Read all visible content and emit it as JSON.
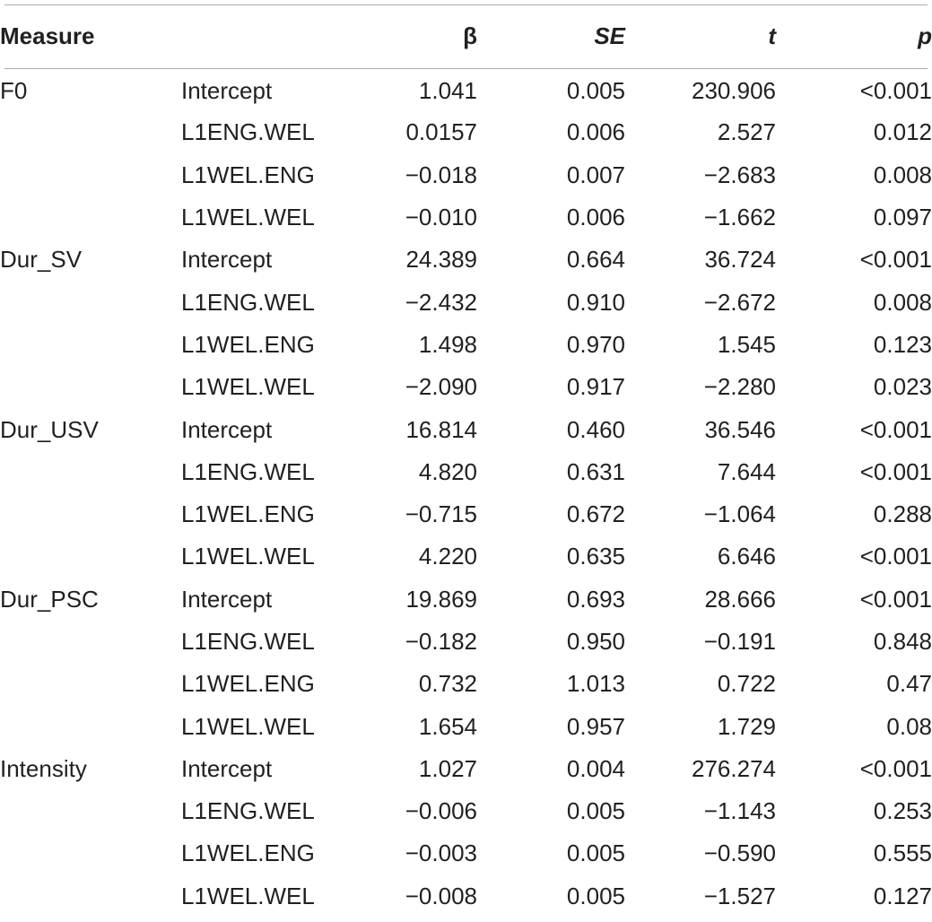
{
  "table": {
    "headers": {
      "measure": "Measure",
      "term": "",
      "beta": "β",
      "se": "SE",
      "t": "t",
      "p": "p"
    },
    "rows": [
      {
        "measure": "F0",
        "term": "Intercept",
        "beta": "1.041",
        "se": "0.005",
        "t": "230.906",
        "p": "<0.001"
      },
      {
        "measure": "",
        "term": "L1ENG.WEL",
        "beta": "0.0157",
        "se": "0.006",
        "t": "2.527",
        "p": "0.012"
      },
      {
        "measure": "",
        "term": "L1WEL.ENG",
        "beta": "−0.018",
        "se": "0.007",
        "t": "−2.683",
        "p": "0.008"
      },
      {
        "measure": "",
        "term": "L1WEL.WEL",
        "beta": "−0.010",
        "se": "0.006",
        "t": "−1.662",
        "p": "0.097"
      },
      {
        "measure": "Dur_SV",
        "term": "Intercept",
        "beta": "24.389",
        "se": "0.664",
        "t": "36.724",
        "p": "<0.001"
      },
      {
        "measure": "",
        "term": "L1ENG.WEL",
        "beta": "−2.432",
        "se": "0.910",
        "t": "−2.672",
        "p": "0.008"
      },
      {
        "measure": "",
        "term": "L1WEL.ENG",
        "beta": "1.498",
        "se": "0.970",
        "t": "1.545",
        "p": "0.123"
      },
      {
        "measure": "",
        "term": "L1WEL.WEL",
        "beta": "−2.090",
        "se": "0.917",
        "t": "−2.280",
        "p": "0.023"
      },
      {
        "measure": "Dur_USV",
        "term": "Intercept",
        "beta": "16.814",
        "se": "0.460",
        "t": "36.546",
        "p": "<0.001"
      },
      {
        "measure": "",
        "term": "L1ENG.WEL",
        "beta": "4.820",
        "se": "0.631",
        "t": "7.644",
        "p": "<0.001"
      },
      {
        "measure": "",
        "term": "L1WEL.ENG",
        "beta": "−0.715",
        "se": "0.672",
        "t": "−1.064",
        "p": "0.288"
      },
      {
        "measure": "",
        "term": "L1WEL.WEL",
        "beta": "4.220",
        "se": "0.635",
        "t": "6.646",
        "p": "<0.001"
      },
      {
        "measure": "Dur_PSC",
        "term": "Intercept",
        "beta": "19.869",
        "se": "0.693",
        "t": "28.666",
        "p": "<0.001"
      },
      {
        "measure": "",
        "term": "L1ENG.WEL",
        "beta": "−0.182",
        "se": "0.950",
        "t": "−0.191",
        "p": "0.848"
      },
      {
        "measure": "",
        "term": "L1WEL.ENG",
        "beta": "0.732",
        "se": "1.013",
        "t": "0.722",
        "p": "0.47"
      },
      {
        "measure": "",
        "term": "L1WEL.WEL",
        "beta": "1.654",
        "se": "0.957",
        "t": "1.729",
        "p": "0.08"
      },
      {
        "measure": "Intensity",
        "term": "Intercept",
        "beta": "1.027",
        "se": "0.004",
        "t": "276.274",
        "p": "<0.001"
      },
      {
        "measure": "",
        "term": "L1ENG.WEL",
        "beta": "−0.006",
        "se": "0.005",
        "t": "−1.143",
        "p": "0.253"
      },
      {
        "measure": "",
        "term": "L1WEL.ENG",
        "beta": "−0.003",
        "se": "0.005",
        "t": "−0.590",
        "p": "0.555"
      },
      {
        "measure": "",
        "term": "L1WEL.WEL",
        "beta": "−0.008",
        "se": "0.005",
        "t": "−1.527",
        "p": "0.127"
      }
    ]
  }
}
